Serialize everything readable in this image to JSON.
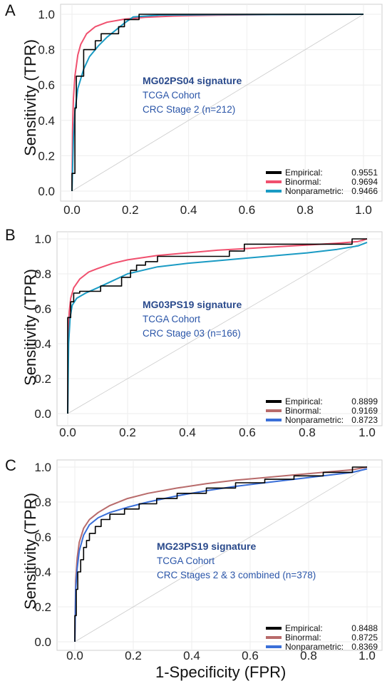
{
  "x_axis_title": "1-Specificity (FPR)",
  "panels": [
    {
      "letter": "A",
      "ylabel": "Sensitivity (TPR)",
      "annotation": {
        "title": "MG02PS04 signature",
        "cohort": "TCGA Cohort",
        "stage": "CRC Stage 2 (n=212)"
      },
      "legend": [
        {
          "label": "Empirical:",
          "value": "0.9551",
          "color": "#000000"
        },
        {
          "label": "Binormal:",
          "value": "0.9694",
          "color": "#f0506e"
        },
        {
          "label": "Nonparametric:",
          "value": "0.9466",
          "color": "#1a9bc4"
        }
      ],
      "chart_data": {
        "type": "line",
        "xlabel": "",
        "ylabel": "Sensitivity (TPR)",
        "xlim": [
          0,
          1
        ],
        "ylim": [
          0,
          1
        ],
        "xticks": [
          "0.0",
          "0.2",
          "0.4",
          "0.6",
          "0.8",
          "1.0"
        ],
        "yticks": [
          "0.0",
          "0.2",
          "0.4",
          "0.6",
          "0.8",
          "1.0"
        ],
        "grid": true,
        "legend_position": "bottom-right",
        "series": [
          {
            "name": "Empirical",
            "color": "#000000",
            "step": true,
            "x": [
              0,
              0,
              0.01,
              0.01,
              0.015,
              0.015,
              0.03,
              0.03,
              0.04,
              0.04,
              0.055,
              0.055,
              0.08,
              0.08,
              0.1,
              0.1,
              0.13,
              0.13,
              0.16,
              0.16,
              0.18,
              0.18,
              0.19,
              0.19,
              0.23,
              0.23,
              1
            ],
            "y": [
              0,
              0.1,
              0.1,
              0.47,
              0.47,
              0.65,
              0.65,
              0.65,
              0.65,
              0.8,
              0.8,
              0.8,
              0.8,
              0.85,
              0.85,
              0.89,
              0.89,
              0.89,
              0.89,
              0.93,
              0.93,
              0.97,
              0.97,
              0.97,
              0.97,
              1.0,
              1.0
            ]
          },
          {
            "name": "Binormal",
            "color": "#f0506e",
            "x": [
              0,
              0.002,
              0.005,
              0.01,
              0.02,
              0.03,
              0.05,
              0.08,
              0.12,
              0.18,
              0.25,
              0.35,
              0.5,
              0.7,
              1.0
            ],
            "y": [
              0,
              0.35,
              0.52,
              0.65,
              0.77,
              0.83,
              0.89,
              0.93,
              0.955,
              0.972,
              0.983,
              0.99,
              0.995,
              0.998,
              1.0
            ]
          },
          {
            "name": "Nonparametric",
            "color": "#1a9bc4",
            "x": [
              0,
              0.005,
              0.01,
              0.02,
              0.04,
              0.06,
              0.09,
              0.12,
              0.15,
              0.18,
              0.21,
              0.3,
              0.5,
              0.8,
              1.0
            ],
            "y": [
              0,
              0.3,
              0.45,
              0.58,
              0.69,
              0.76,
              0.82,
              0.87,
              0.91,
              0.95,
              0.985,
              0.995,
              0.998,
              0.999,
              1.0
            ]
          }
        ]
      }
    },
    {
      "letter": "B",
      "ylabel": "Sensitivity (TPR)",
      "annotation": {
        "title": "MG03PS19 signature",
        "cohort": "TCGA Cohort",
        "stage": "CRC Stage 03 (n=166)"
      },
      "legend": [
        {
          "label": "Empirical:",
          "value": "0.8899",
          "color": "#000000"
        },
        {
          "label": "Binormal:",
          "value": "0.9169",
          "color": "#b86b6b"
        },
        {
          "label": "Nonparametric:",
          "value": "0.8723",
          "color": "#3a6fd8"
        }
      ],
      "chart_data": {
        "type": "line",
        "xlabel": "",
        "ylabel": "Sensitivity (TPR)",
        "xlim": [
          0,
          1
        ],
        "ylim": [
          0,
          1
        ],
        "xticks": [
          "0.0",
          "0.2",
          "0.4",
          "0.6",
          "0.8",
          "1.0"
        ],
        "yticks": [
          "0.0",
          "0.2",
          "0.4",
          "0.6",
          "0.8",
          "1.0"
        ],
        "grid": true,
        "legend_position": "bottom-right",
        "series": [
          {
            "name": "Empirical",
            "color": "#000000",
            "step": true,
            "x": [
              0,
              0,
              0.01,
              0.01,
              0.02,
              0.02,
              0.04,
              0.04,
              0.11,
              0.11,
              0.18,
              0.18,
              0.21,
              0.21,
              0.23,
              0.23,
              0.26,
              0.26,
              0.3,
              0.3,
              0.54,
              0.54,
              0.59,
              0.59,
              0.95,
              0.95,
              1
            ],
            "y": [
              0,
              0.55,
              0.55,
              0.64,
              0.64,
              0.69,
              0.69,
              0.7,
              0.7,
              0.73,
              0.73,
              0.78,
              0.78,
              0.82,
              0.82,
              0.85,
              0.85,
              0.87,
              0.87,
              0.9,
              0.9,
              0.93,
              0.93,
              0.97,
              0.97,
              1.0,
              1.0
            ]
          },
          {
            "name": "Binormal",
            "color": "#f0506e",
            "x": [
              0,
              0.002,
              0.005,
              0.01,
              0.02,
              0.04,
              0.07,
              0.1,
              0.15,
              0.2,
              0.3,
              0.4,
              0.5,
              0.6,
              0.7,
              0.8,
              0.9,
              0.97,
              1.0
            ],
            "y": [
              0,
              0.45,
              0.58,
              0.66,
              0.72,
              0.77,
              0.81,
              0.83,
              0.86,
              0.88,
              0.905,
              0.92,
              0.935,
              0.945,
              0.955,
              0.965,
              0.975,
              0.985,
              1.0
            ]
          },
          {
            "name": "Nonparametric",
            "color": "#1a9bc4",
            "x": [
              0,
              0.003,
              0.008,
              0.015,
              0.03,
              0.06,
              0.1,
              0.15,
              0.2,
              0.3,
              0.4,
              0.5,
              0.6,
              0.7,
              0.8,
              0.9,
              0.97,
              1.0
            ],
            "y": [
              0,
              0.4,
              0.55,
              0.62,
              0.66,
              0.69,
              0.72,
              0.76,
              0.8,
              0.84,
              0.86,
              0.875,
              0.89,
              0.905,
              0.92,
              0.94,
              0.96,
              0.98
            ]
          }
        ]
      }
    },
    {
      "letter": "C",
      "ylabel": "Sensitivity (TPR)",
      "annotation": {
        "title": "MG23PS19 signature",
        "cohort": "TCGA Cohort",
        "stage": "CRC Stages 2 & 3 combined (n=378)"
      },
      "legend": [
        {
          "label": "Empirical:",
          "value": "0.8488",
          "color": "#000000"
        },
        {
          "label": "Binormal:",
          "value": "0.8725",
          "color": "#b86b6b"
        },
        {
          "label": "Nonparametric:",
          "value": "0.8369",
          "color": "#3a6fd8"
        }
      ],
      "chart_data": {
        "type": "line",
        "xlabel": "1-Specificity (FPR)",
        "ylabel": "Sensitivity (TPR)",
        "xlim": [
          0,
          1
        ],
        "ylim": [
          0,
          1
        ],
        "xticks": [
          "0.0",
          "0.2",
          "0.4",
          "0.6",
          "0.8",
          "1.0"
        ],
        "yticks": [
          "0.0",
          "0.2",
          "0.4",
          "0.6",
          "0.8",
          "1.0"
        ],
        "grid": true,
        "legend_position": "bottom-right",
        "series": [
          {
            "name": "Empirical",
            "color": "#000000",
            "step": true,
            "x": [
              0,
              0,
              0.005,
              0.005,
              0.01,
              0.01,
              0.02,
              0.02,
              0.03,
              0.03,
              0.04,
              0.04,
              0.05,
              0.05,
              0.07,
              0.07,
              0.09,
              0.09,
              0.12,
              0.12,
              0.17,
              0.17,
              0.22,
              0.22,
              0.28,
              0.28,
              0.35,
              0.35,
              0.45,
              0.45,
              0.55,
              0.55,
              0.65,
              0.65,
              0.75,
              0.75,
              0.85,
              0.85,
              0.95,
              0.95,
              1
            ],
            "y": [
              0,
              0.15,
              0.15,
              0.3,
              0.3,
              0.4,
              0.4,
              0.47,
              0.47,
              0.54,
              0.54,
              0.58,
              0.58,
              0.62,
              0.62,
              0.66,
              0.66,
              0.7,
              0.7,
              0.73,
              0.73,
              0.76,
              0.76,
              0.79,
              0.79,
              0.82,
              0.82,
              0.85,
              0.85,
              0.88,
              0.88,
              0.91,
              0.91,
              0.93,
              0.93,
              0.95,
              0.95,
              0.97,
              0.97,
              1.0,
              1.0
            ]
          },
          {
            "name": "Binormal",
            "color": "#b86b6b",
            "x": [
              0,
              0.003,
              0.008,
              0.015,
              0.03,
              0.05,
              0.08,
              0.12,
              0.18,
              0.25,
              0.35,
              0.45,
              0.55,
              0.65,
              0.75,
              0.85,
              0.95,
              1.0
            ],
            "y": [
              0,
              0.35,
              0.48,
              0.57,
              0.65,
              0.7,
              0.74,
              0.78,
              0.82,
              0.85,
              0.88,
              0.905,
              0.925,
              0.94,
              0.955,
              0.97,
              0.985,
              1.0
            ]
          },
          {
            "name": "Nonparametric",
            "color": "#3a6fd8",
            "x": [
              0,
              0.003,
              0.008,
              0.015,
              0.03,
              0.05,
              0.08,
              0.12,
              0.18,
              0.25,
              0.35,
              0.45,
              0.55,
              0.65,
              0.75,
              0.85,
              0.95,
              1.0
            ],
            "y": [
              0,
              0.3,
              0.42,
              0.52,
              0.61,
              0.67,
              0.71,
              0.74,
              0.77,
              0.8,
              0.835,
              0.865,
              0.89,
              0.91,
              0.93,
              0.95,
              0.97,
              0.99
            ]
          }
        ]
      }
    }
  ]
}
